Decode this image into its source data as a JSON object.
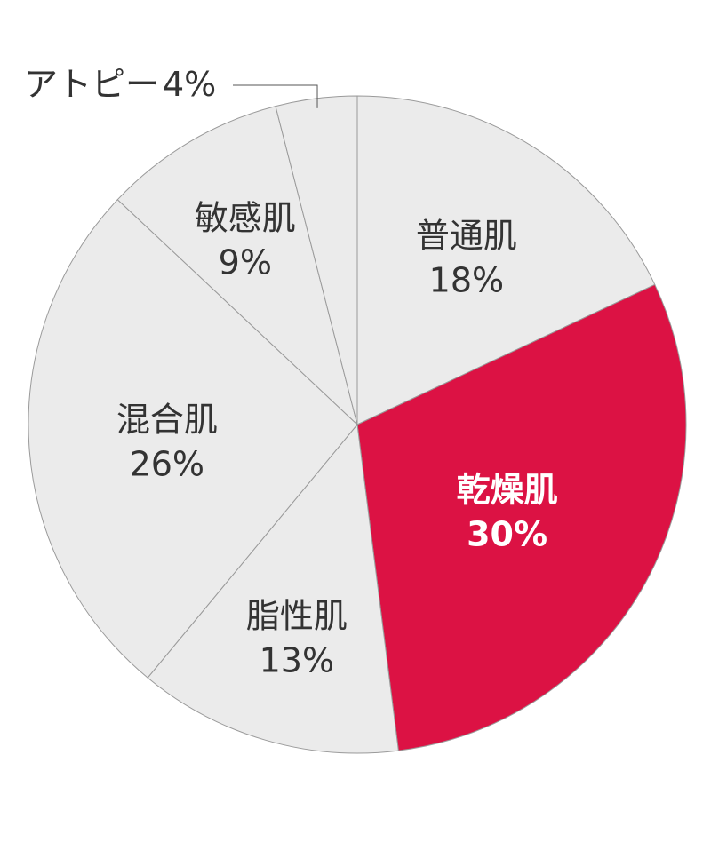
{
  "colors": {
    "highlight": "#DC1244",
    "default": "#EBEBEB",
    "border": "#9A9A9A",
    "text": "#333333",
    "highlight_text": "#FFFFFF"
  },
  "chart_data": {
    "type": "pie",
    "title": "",
    "start": "12 o'clock, clockwise",
    "slices": [
      {
        "label": "普通肌",
        "value": 18,
        "value_label": "18%",
        "highlight": false
      },
      {
        "label": "乾燥肌",
        "value": 30,
        "value_label": "30%",
        "highlight": true
      },
      {
        "label": "脂性肌",
        "value": 13,
        "value_label": "13%",
        "highlight": false
      },
      {
        "label": "混合肌",
        "value": 26,
        "value_label": "26%",
        "highlight": false
      },
      {
        "label": "敏感肌",
        "value": 9,
        "value_label": "9%",
        "highlight": false
      },
      {
        "label": "アトピー",
        "value": 4,
        "value_label": "4%",
        "highlight": false,
        "callout": true
      }
    ]
  }
}
